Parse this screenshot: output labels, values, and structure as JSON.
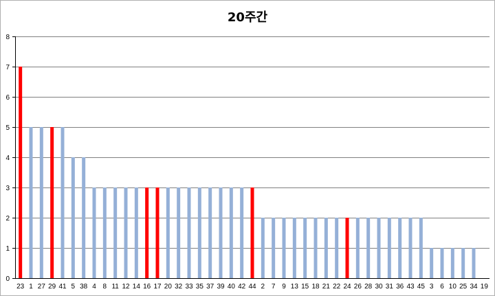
{
  "chart_data": {
    "type": "bar",
    "title": "20주간",
    "xlabel": "",
    "ylabel": "",
    "ylim": [
      0,
      8
    ],
    "yticks": [
      0,
      1,
      2,
      3,
      4,
      5,
      6,
      7,
      8
    ],
    "grid": true,
    "categories": [
      "23",
      "1",
      "27",
      "29",
      "41",
      "5",
      "38",
      "4",
      "8",
      "11",
      "12",
      "14",
      "16",
      "17",
      "20",
      "32",
      "33",
      "35",
      "37",
      "39",
      "40",
      "42",
      "44",
      "2",
      "7",
      "9",
      "13",
      "15",
      "18",
      "21",
      "22",
      "24",
      "26",
      "28",
      "30",
      "31",
      "36",
      "43",
      "45",
      "3",
      "6",
      "10",
      "25",
      "34",
      "19"
    ],
    "values": [
      7,
      5,
      5,
      5,
      5,
      4,
      4,
      3,
      3,
      3,
      3,
      3,
      3,
      3,
      3,
      3,
      3,
      3,
      3,
      3,
      3,
      3,
      3,
      2,
      2,
      2,
      2,
      2,
      2,
      2,
      2,
      2,
      2,
      2,
      2,
      2,
      2,
      2,
      2,
      1,
      1,
      1,
      1,
      1,
      0
    ],
    "highlighted": [
      "23",
      "29",
      "16",
      "17",
      "44",
      "24"
    ],
    "colors": {
      "default_bar": "#95b0d7",
      "highlight_bar": "#ff0000",
      "gridline": "#7f7f7f"
    }
  }
}
